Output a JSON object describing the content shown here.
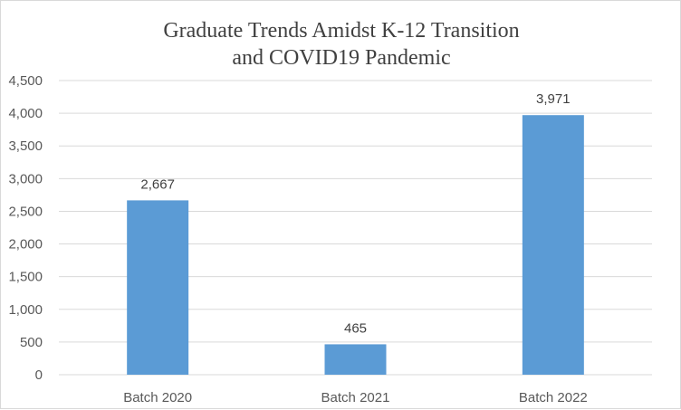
{
  "chart_data": {
    "type": "bar",
    "title": "Graduate Trends Amidst K-12 Transition and COVID19 Pandemic",
    "title_lines": [
      "Graduate Trends Amidst K-12 Transition",
      "and COVID19 Pandemic"
    ],
    "categories": [
      "Batch 2020",
      "Batch 2021",
      "Batch 2022"
    ],
    "values": [
      2667,
      465,
      3971
    ],
    "value_labels": [
      "2,667",
      "465",
      "3,971"
    ],
    "ylim": [
      0,
      4500
    ],
    "yticks": [
      0,
      500,
      1000,
      1500,
      2000,
      2500,
      3000,
      3500,
      4000,
      4500
    ],
    "ytick_labels": [
      "0",
      "500",
      "1,000",
      "1,500",
      "2,000",
      "2,500",
      "3,000",
      "3,500",
      "4,000",
      "4,500"
    ],
    "xlabel": "",
    "ylabel": "",
    "grid": true,
    "bar_color": "#5b9bd5",
    "grid_color": "#d9d9d9"
  }
}
